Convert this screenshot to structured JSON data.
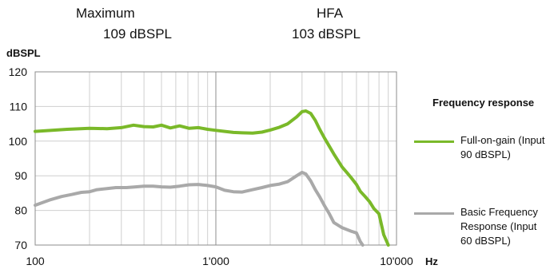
{
  "headers": {
    "maximum_label": "Maximum",
    "maximum_value": "109 dBSPL",
    "hfa_label": "HFA",
    "hfa_value": "103 dBSPL"
  },
  "chart_data": {
    "type": "line",
    "title": "",
    "xlabel": "Hz",
    "ylabel": "dBSPL",
    "xscale": "log",
    "xlim": [
      100,
      10000
    ],
    "ylim": [
      70,
      120
    ],
    "x_ticks": [
      100,
      1000,
      10000
    ],
    "x_tick_labels": [
      "100",
      "1'000",
      "10'000"
    ],
    "y_ticks": [
      70,
      80,
      90,
      100,
      110,
      120
    ],
    "y_tick_labels": [
      "70",
      "80",
      "90",
      "100",
      "110",
      "120"
    ],
    "grid": true,
    "legend": {
      "title": "Frequency response",
      "position": "right"
    },
    "series": [
      {
        "name": "Full-on-gain (Input 90 dBSPL)",
        "color": "#7ab929",
        "x": [
          100,
          150,
          200,
          250,
          300,
          350,
          400,
          450,
          500,
          560,
          630,
          710,
          800,
          900,
          1000,
          1120,
          1250,
          1400,
          1600,
          1800,
          2000,
          2250,
          2500,
          2800,
          3000,
          3150,
          3350,
          3550,
          3750,
          4000,
          4250,
          4500,
          5000,
          5300,
          5600,
          6000,
          6300,
          6700,
          7100,
          7500,
          8000,
          8500,
          9000
        ],
        "y": [
          102.8,
          103.4,
          103.7,
          103.6,
          103.9,
          104.6,
          104.2,
          104.1,
          104.6,
          103.8,
          104.4,
          103.7,
          103.9,
          103.4,
          103.1,
          102.8,
          102.5,
          102.4,
          102.3,
          102.6,
          103.2,
          104,
          105,
          107,
          108.5,
          108.7,
          108,
          106,
          103.5,
          100.8,
          98.5,
          96.3,
          92.5,
          91,
          89.5,
          87.5,
          85.5,
          84,
          82.5,
          80.5,
          79,
          73,
          70
        ]
      },
      {
        "name": "Basic Frequency Response (Input 60 dBSPL)",
        "color": "#a9a9a9",
        "x": [
          100,
          120,
          140,
          160,
          180,
          200,
          220,
          250,
          280,
          320,
          360,
          400,
          450,
          500,
          560,
          630,
          710,
          800,
          900,
          1000,
          1120,
          1250,
          1400,
          1600,
          1800,
          2000,
          2250,
          2500,
          2800,
          3000,
          3150,
          3350,
          3550,
          3750,
          4000,
          4250,
          4500,
          5000,
          5600,
          6000,
          6300,
          6500
        ],
        "y": [
          81.5,
          83,
          84,
          84.6,
          85.2,
          85.4,
          86,
          86.3,
          86.6,
          86.6,
          86.8,
          87,
          87,
          86.8,
          86.7,
          87,
          87.4,
          87.5,
          87.2,
          86.8,
          85.8,
          85.4,
          85.3,
          86,
          86.6,
          87.2,
          87.6,
          88.3,
          90,
          91,
          90.5,
          88.5,
          86,
          84,
          81.3,
          79,
          76.5,
          75,
          74,
          73.5,
          71,
          70
        ]
      }
    ]
  }
}
